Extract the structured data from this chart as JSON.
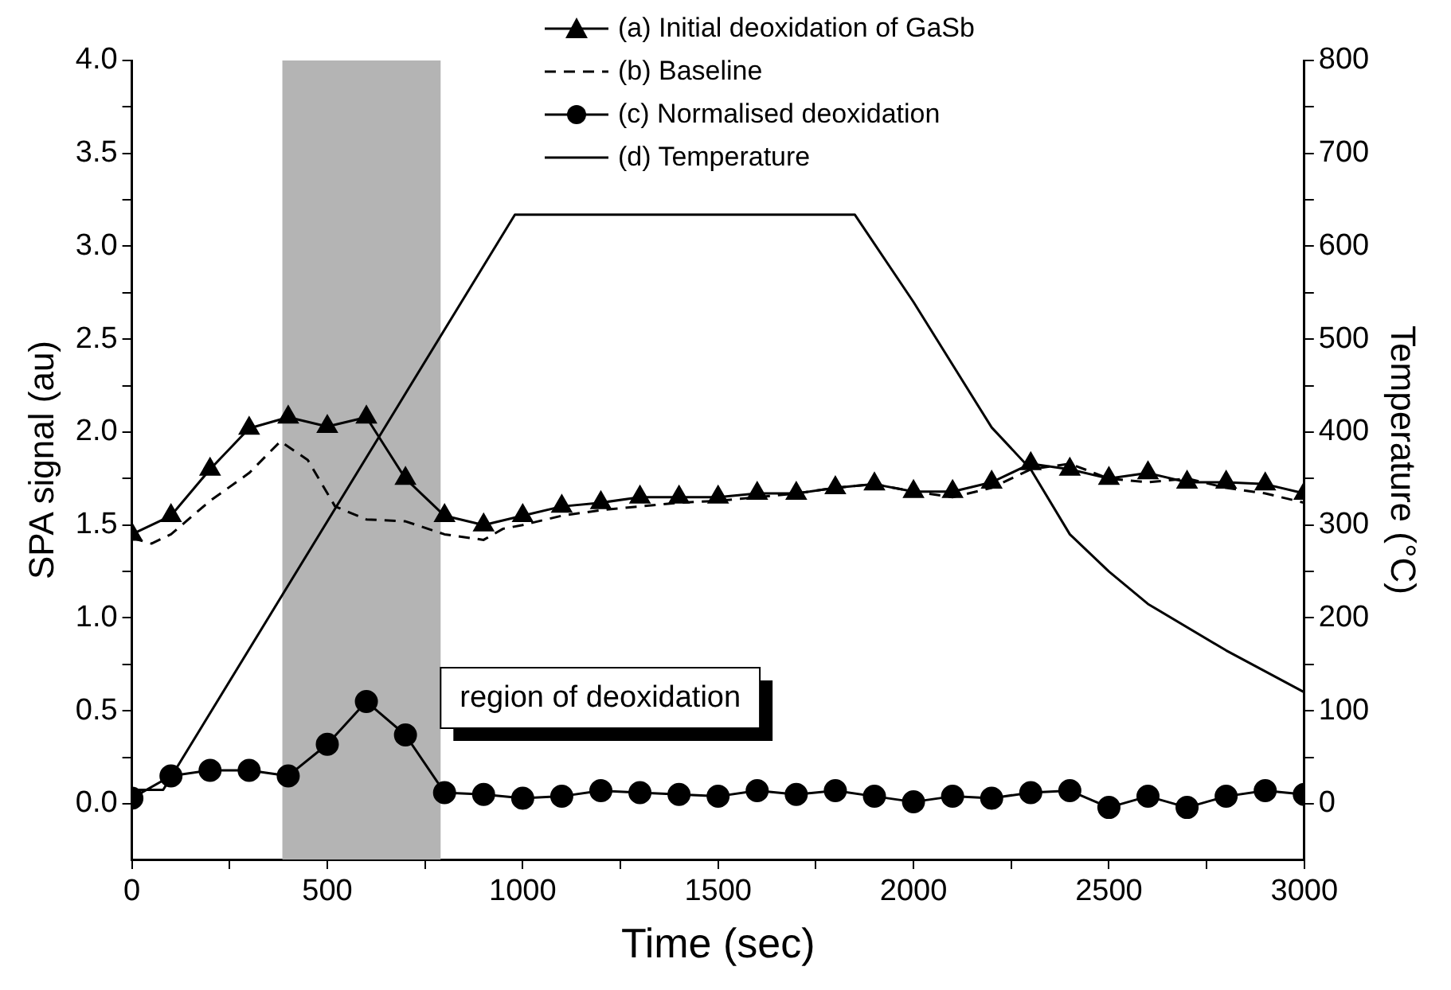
{
  "chart_data": {
    "type": "line",
    "xlabel": "Time (sec)",
    "ylabel": "SPA signal (au)",
    "y2label": "Temperature (°C)",
    "xlim": [
      0,
      3000
    ],
    "xticks": [
      0,
      {
        "value": 250,
        "label": null
      },
      500,
      {
        "value": 750,
        "label": null
      },
      1000,
      {
        "value": 1250,
        "label": null
      },
      1500,
      {
        "value": 1750,
        "label": null
      },
      2000,
      {
        "value": 2250,
        "label": null
      },
      2500,
      {
        "value": 2750,
        "label": null
      },
      3000
    ],
    "ylim": [
      -0.3,
      4
    ],
    "yticks": [
      {
        "value": 0,
        "label": "0.0"
      },
      {
        "value": 0.25,
        "label": null
      },
      {
        "value": 0.5,
        "label": "0.5"
      },
      {
        "value": 0.75,
        "label": null
      },
      {
        "value": 1,
        "label": "1.0"
      },
      {
        "value": 1.25,
        "label": null
      },
      {
        "value": 1.5,
        "label": "1.5"
      },
      {
        "value": 1.75,
        "label": null
      },
      {
        "value": 2,
        "label": "2.0"
      },
      {
        "value": 2.25,
        "label": null
      },
      {
        "value": 2.5,
        "label": "2.5"
      },
      {
        "value": 2.75,
        "label": null
      },
      {
        "value": 3,
        "label": "3.0"
      },
      {
        "value": 3.25,
        "label": null
      },
      {
        "value": 3.5,
        "label": "3.5"
      },
      {
        "value": 3.75,
        "label": null
      },
      {
        "value": 4,
        "label": "4.0"
      }
    ],
    "y2lim": [
      -60,
      800
    ],
    "y2ticks": [
      0,
      {
        "value": 50,
        "label": null
      },
      100,
      {
        "value": 150,
        "label": null
      },
      200,
      {
        "value": 250,
        "label": null
      },
      300,
      {
        "value": 350,
        "label": null
      },
      400,
      {
        "value": 450,
        "label": null
      },
      500,
      {
        "value": 550,
        "label": null
      },
      600,
      {
        "value": 650,
        "label": null
      },
      700,
      {
        "value": 750,
        "label": null
      },
      800
    ],
    "grid": false,
    "legend": "top",
    "bands": [
      {
        "axis": "x",
        "from": 385,
        "to": 790,
        "label": "region of deoxidation",
        "color": "#b4b4b4"
      }
    ],
    "series": [
      {
        "name": "(a) Initial deoxidation of GaSb",
        "color": "#000000",
        "marker": "triangle",
        "line_style": "solid",
        "x": [
          0,
          100,
          200,
          300,
          400,
          500,
          600,
          700,
          800,
          900,
          1000,
          1100,
          1200,
          1300,
          1400,
          1500,
          1600,
          1700,
          1800,
          1900,
          2000,
          2100,
          2200,
          2300,
          2400,
          2500,
          2600,
          2700,
          2800,
          2900,
          3000
        ],
        "values": [
          1.45,
          1.55,
          1.8,
          2.02,
          2.08,
          2.03,
          2.08,
          1.75,
          1.55,
          1.5,
          1.55,
          1.6,
          1.62,
          1.65,
          1.65,
          1.65,
          1.67,
          1.67,
          1.7,
          1.72,
          1.68,
          1.68,
          1.73,
          1.83,
          1.8,
          1.75,
          1.78,
          1.73,
          1.73,
          1.72,
          1.67
        ]
      },
      {
        "name": "(b) Baseline",
        "color": "#000000",
        "marker": "none",
        "line_style": "dashed",
        "x": [
          0,
          50,
          100,
          200,
          300,
          380,
          450,
          520,
          600,
          700,
          800,
          900,
          950,
          1000,
          1100,
          1200,
          1300,
          1400,
          1500,
          1600,
          1700,
          1800,
          1900,
          2000,
          2100,
          2200,
          2300,
          2400,
          2500,
          2600,
          2700,
          2800,
          2900,
          3000
        ],
        "values": [
          1.43,
          1.4,
          1.45,
          1.63,
          1.78,
          1.95,
          1.85,
          1.6,
          1.53,
          1.52,
          1.45,
          1.42,
          1.48,
          1.5,
          1.55,
          1.58,
          1.6,
          1.62,
          1.63,
          1.65,
          1.67,
          1.7,
          1.72,
          1.68,
          1.65,
          1.7,
          1.8,
          1.83,
          1.75,
          1.73,
          1.75,
          1.7,
          1.67,
          1.62
        ]
      },
      {
        "name": "(c) Normalised deoxidation",
        "color": "#000000",
        "marker": "circle",
        "line_style": "solid",
        "x": [
          0,
          100,
          200,
          300,
          400,
          500,
          600,
          700,
          800,
          900,
          1000,
          1100,
          1200,
          1300,
          1400,
          1500,
          1600,
          1700,
          1800,
          1900,
          2000,
          2100,
          2200,
          2300,
          2400,
          2500,
          2600,
          2700,
          2800,
          2900,
          3000
        ],
        "values": [
          0.03,
          0.15,
          0.18,
          0.18,
          0.15,
          0.32,
          0.55,
          0.37,
          0.06,
          0.05,
          0.03,
          0.04,
          0.07,
          0.06,
          0.05,
          0.04,
          0.07,
          0.05,
          0.07,
          0.04,
          0.01,
          0.04,
          0.03,
          0.06,
          0.07,
          -0.02,
          0.04,
          -0.02,
          0.04,
          0.07,
          0.05
        ]
      },
      {
        "name": "(d) Temperature",
        "color": "#000000",
        "marker": "none",
        "line_style": "solid",
        "axis": "y2",
        "x": [
          0,
          80,
          980,
          1850,
          2000,
          2200,
          2300,
          2400,
          2500,
          2600,
          2800,
          3000
        ],
        "values": [
          15,
          15,
          634,
          634,
          540,
          405,
          360,
          290,
          250,
          215,
          165,
          120
        ]
      }
    ]
  }
}
